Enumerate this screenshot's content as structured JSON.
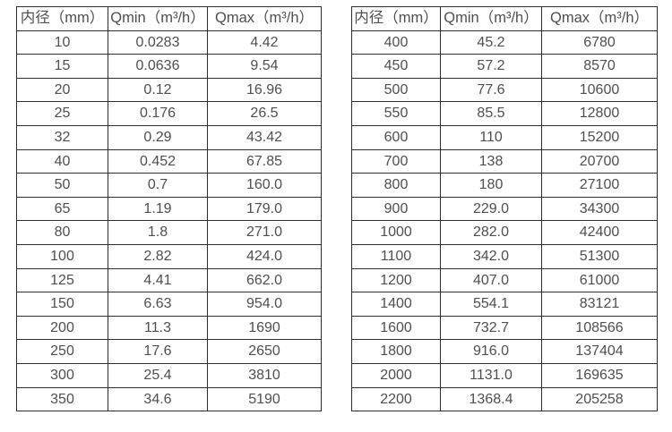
{
  "page": {
    "background": "#ffffff",
    "border_color": "#2e2e2e",
    "text_color": "#4f4f4f"
  },
  "tables": [
    {
      "name": "flow-rate-table-small-diameters",
      "headers": [
        "内径（mm）",
        "Qmin（m³/h）",
        "Qmax（m³/h）"
      ],
      "rows": [
        [
          "10",
          "0.0283",
          "4.42"
        ],
        [
          "15",
          "0.0636",
          "9.54"
        ],
        [
          "20",
          "0.12",
          "16.96"
        ],
        [
          "25",
          "0.176",
          "26.5"
        ],
        [
          "32",
          "0.29",
          "43.42"
        ],
        [
          "40",
          "0.452",
          "67.85"
        ],
        [
          "50",
          "0.7",
          "160.0"
        ],
        [
          "65",
          "1.19",
          "179.0"
        ],
        [
          "80",
          "1.8",
          "271.0"
        ],
        [
          "100",
          "2.82",
          "424.0"
        ],
        [
          "125",
          "4.41",
          "662.0"
        ],
        [
          "150",
          "6.63",
          "954.0"
        ],
        [
          "200",
          "11.3",
          "1690"
        ],
        [
          "250",
          "17.6",
          "2650"
        ],
        [
          "300",
          "25.4",
          "3810"
        ],
        [
          "350",
          "34.6",
          "5190"
        ]
      ]
    },
    {
      "name": "flow-rate-table-large-diameters",
      "headers": [
        "内径（mm）",
        "Qmin（m³/h）",
        "Qmax（m³/h）"
      ],
      "rows": [
        [
          "400",
          "45.2",
          "6780"
        ],
        [
          "450",
          "57.2",
          "8570"
        ],
        [
          "500",
          "77.6",
          "10600"
        ],
        [
          "550",
          "85.5",
          "12800"
        ],
        [
          "600",
          "110",
          "15200"
        ],
        [
          "700",
          "138",
          "20700"
        ],
        [
          "800",
          "180",
          "27100"
        ],
        [
          "900",
          "229.0",
          "34300"
        ],
        [
          "1000",
          "282.0",
          "42400"
        ],
        [
          "1100",
          "342.0",
          "51300"
        ],
        [
          "1200",
          "407.0",
          "61000"
        ],
        [
          "1400",
          "554.1",
          "83121"
        ],
        [
          "1600",
          "732.7",
          "108566"
        ],
        [
          "1800",
          "916.0",
          "137404"
        ],
        [
          "2000",
          "1131.0",
          "169635"
        ],
        [
          "2200",
          "1368.4",
          "205258"
        ]
      ]
    }
  ]
}
